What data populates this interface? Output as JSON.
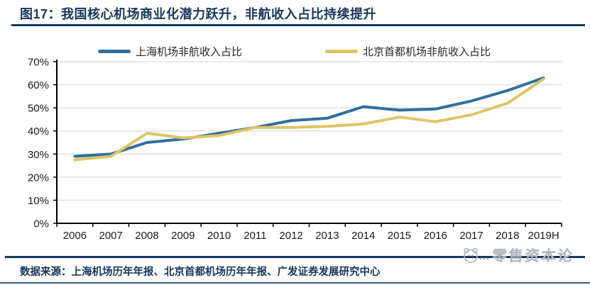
{
  "header": {
    "title": "图17：我国核心机场商业化潜力跃升，非航收入占比持续提升"
  },
  "chart_data": {
    "type": "line",
    "categories": [
      "2006",
      "2007",
      "2008",
      "2009",
      "2010",
      "2011",
      "2012",
      "2013",
      "2014",
      "2015",
      "2016",
      "2017",
      "2018",
      "2019H"
    ],
    "series": [
      {
        "name": "上海机场非航收入占比",
        "color": "#2E6F9F",
        "values": [
          29,
          30,
          35,
          36.5,
          39,
          41.5,
          44.5,
          45.5,
          50.5,
          49,
          49.5,
          53,
          57.5,
          63
        ]
      },
      {
        "name": "北京首都机场非航收入占比",
        "color": "#DFC364",
        "values": [
          27.5,
          29,
          39,
          37,
          38,
          41.5,
          41.5,
          42,
          43,
          46,
          44,
          47,
          52,
          62.5
        ]
      }
    ],
    "title": "",
    "xlabel": "",
    "ylabel": "",
    "ylim": [
      0,
      70
    ],
    "y_ticks": [
      "0%",
      "10%",
      "20%",
      "30%",
      "40%",
      "50%",
      "60%",
      "70%"
    ],
    "grid": true,
    "legend_position": "top"
  },
  "footer": {
    "source": "数据来源：上海机场历年年报、北京首都机场历年年报、广发证券发展研究中心",
    "watermark": "零售资本论"
  },
  "colors": {
    "navy": "#17365D",
    "grid": "#D9D9D9",
    "axis": "#000000",
    "tick_text": "#1a1a1a",
    "watermark_gray": "#AEB3BB"
  }
}
